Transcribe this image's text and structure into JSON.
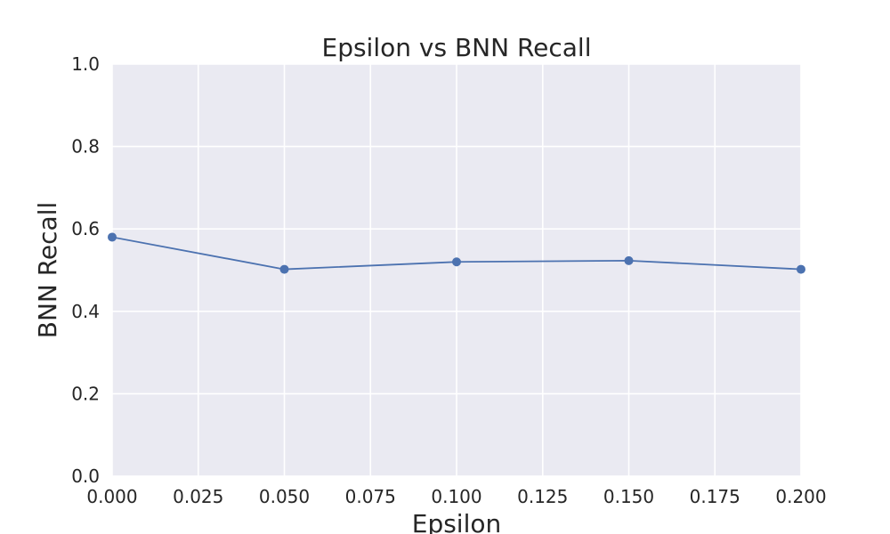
{
  "chart_data": {
    "type": "line",
    "title": "Epsilon vs BNN Recall",
    "xlabel": "Epsilon",
    "ylabel": "BNN Recall",
    "xlim": [
      0.0,
      0.2
    ],
    "ylim": [
      0.0,
      1.0
    ],
    "grid": true,
    "x_ticks": [
      "0.000",
      "0.025",
      "0.050",
      "0.075",
      "0.100",
      "0.125",
      "0.150",
      "0.175",
      "0.200"
    ],
    "y_ticks": [
      "0.0",
      "0.2",
      "0.4",
      "0.6",
      "0.8",
      "1.0"
    ],
    "series": [
      {
        "x": [
          0.0,
          0.05,
          0.1,
          0.15,
          0.2
        ],
        "y": [
          0.58,
          0.502,
          0.52,
          0.523,
          0.502
        ],
        "color": "#4c72b0"
      }
    ]
  }
}
